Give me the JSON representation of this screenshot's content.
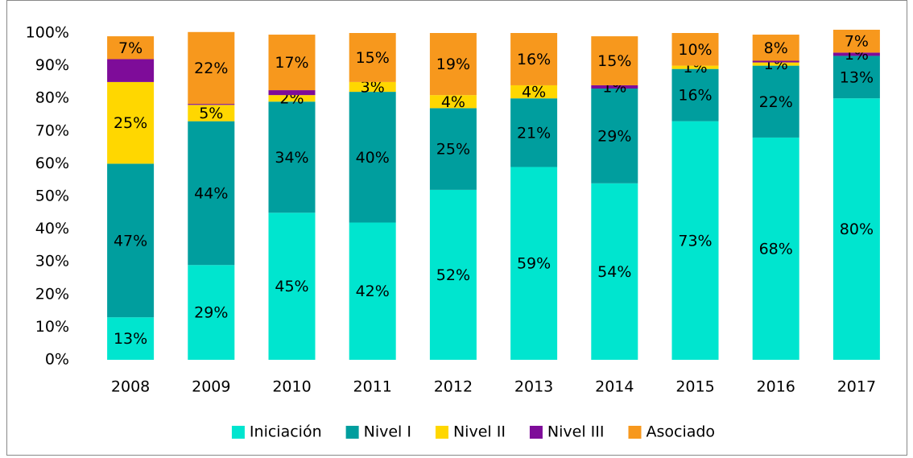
{
  "chart_data": {
    "type": "stacked_bar",
    "categories": [
      "2008",
      "2009",
      "2010",
      "2011",
      "2012",
      "2013",
      "2014",
      "2015",
      "2016",
      "2017"
    ],
    "series": [
      {
        "name": "Iniciación",
        "color": "#00e5cf",
        "values": [
          13,
          29,
          45,
          42,
          52,
          59,
          54,
          73,
          68,
          80
        ],
        "value_labels": [
          "13%",
          "29%",
          "45%",
          "42%",
          "52%",
          "59%",
          "54%",
          "73%",
          "68%",
          "80%"
        ]
      },
      {
        "name": "Nivel I",
        "color": "#009e9e",
        "values": [
          47,
          44,
          34,
          40,
          25,
          21,
          29,
          16,
          22,
          13
        ],
        "value_labels": [
          "47%",
          "44%",
          "34%",
          "40%",
          "25%",
          "21%",
          "29%",
          "16%",
          "22%",
          "13%"
        ]
      },
      {
        "name": "Nivel II",
        "color": "#ffd700",
        "values": [
          25,
          5,
          2,
          3,
          4,
          4,
          0,
          1,
          1,
          0
        ],
        "value_labels": [
          "25%",
          "5%",
          "2%",
          "3%",
          "4%",
          "4%",
          null,
          "1%",
          "1%",
          null
        ]
      },
      {
        "name": "Nivel III",
        "color": "#7e0c99",
        "values": [
          7,
          0.3,
          1.5,
          0,
          0,
          0,
          1,
          0,
          0.5,
          1
        ],
        "value_labels": [
          null,
          null,
          null,
          null,
          null,
          null,
          "1%",
          null,
          null,
          "1%"
        ]
      },
      {
        "name": "Asociado",
        "color": "#f7981d",
        "values": [
          7,
          22,
          17,
          15,
          19,
          16,
          15,
          10,
          8,
          7
        ],
        "value_labels": [
          "7%",
          "22%",
          "17%",
          "15%",
          "19%",
          "16%",
          "15%",
          "10%",
          "8%",
          "7%"
        ]
      }
    ],
    "ylim": [
      0,
      100
    ],
    "yticks": [
      {
        "value": 0,
        "label": "0%"
      },
      {
        "value": 10,
        "label": "10%"
      },
      {
        "value": 20,
        "label": "20%"
      },
      {
        "value": 30,
        "label": "30%"
      },
      {
        "value": 40,
        "label": "40%"
      },
      {
        "value": 50,
        "label": "50%"
      },
      {
        "value": 60,
        "label": "60%"
      },
      {
        "value": 70,
        "label": "70%"
      },
      {
        "value": 80,
        "label": "80%"
      },
      {
        "value": 90,
        "label": "90%"
      },
      {
        "value": 100,
        "label": "100%"
      }
    ],
    "legend": "bottom",
    "grid": false
  }
}
